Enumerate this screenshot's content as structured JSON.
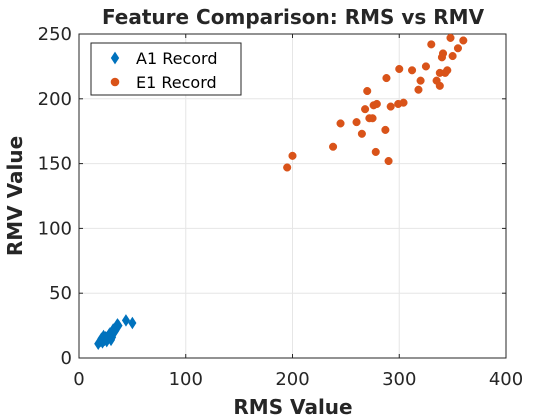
{
  "chart_data": {
    "type": "scatter",
    "title": "Feature Comparison: RMS vs RMV",
    "xlabel": "RMS Value",
    "ylabel": "RMV Value",
    "xlim": [
      0,
      400
    ],
    "ylim": [
      0,
      250
    ],
    "xticks": [
      0,
      100,
      200,
      300,
      400
    ],
    "yticks": [
      0,
      50,
      100,
      150,
      200,
      250
    ],
    "grid": true,
    "legend_position": "top-left",
    "series": [
      {
        "name": "A1 Record",
        "marker": "diamond",
        "color": "#0072BD",
        "points": [
          [
            18,
            11
          ],
          [
            20,
            13
          ],
          [
            22,
            12
          ],
          [
            21,
            15
          ],
          [
            24,
            14
          ],
          [
            25,
            16
          ],
          [
            23,
            17
          ],
          [
            27,
            15
          ],
          [
            28,
            18
          ],
          [
            26,
            13
          ],
          [
            30,
            17
          ],
          [
            29,
            19
          ],
          [
            31,
            16
          ],
          [
            33,
            20
          ],
          [
            32,
            22
          ],
          [
            34,
            21
          ],
          [
            35,
            24
          ],
          [
            36,
            26
          ],
          [
            37,
            25
          ],
          [
            30,
            14
          ],
          [
            44,
            29
          ],
          [
            50,
            27
          ]
        ]
      },
      {
        "name": "E1 Record",
        "marker": "circle",
        "color": "#D95319",
        "points": [
          [
            195,
            147
          ],
          [
            200,
            156
          ],
          [
            238,
            163
          ],
          [
            245,
            181
          ],
          [
            260,
            182
          ],
          [
            265,
            173
          ],
          [
            268,
            192
          ],
          [
            270,
            206
          ],
          [
            272,
            185
          ],
          [
            275,
            185
          ],
          [
            276,
            195
          ],
          [
            278,
            159
          ],
          [
            279,
            196
          ],
          [
            287,
            176
          ],
          [
            288,
            216
          ],
          [
            290,
            152
          ],
          [
            292,
            194
          ],
          [
            299,
            196
          ],
          [
            300,
            223
          ],
          [
            304,
            197
          ],
          [
            312,
            222
          ],
          [
            318,
            207
          ],
          [
            320,
            214
          ],
          [
            325,
            225
          ],
          [
            330,
            242
          ],
          [
            335,
            214
          ],
          [
            338,
            210
          ],
          [
            338,
            220
          ],
          [
            340,
            232
          ],
          [
            341,
            235
          ],
          [
            343,
            220
          ],
          [
            345,
            222
          ],
          [
            348,
            247
          ],
          [
            350,
            233
          ],
          [
            355,
            239
          ],
          [
            360,
            245
          ]
        ]
      }
    ]
  }
}
